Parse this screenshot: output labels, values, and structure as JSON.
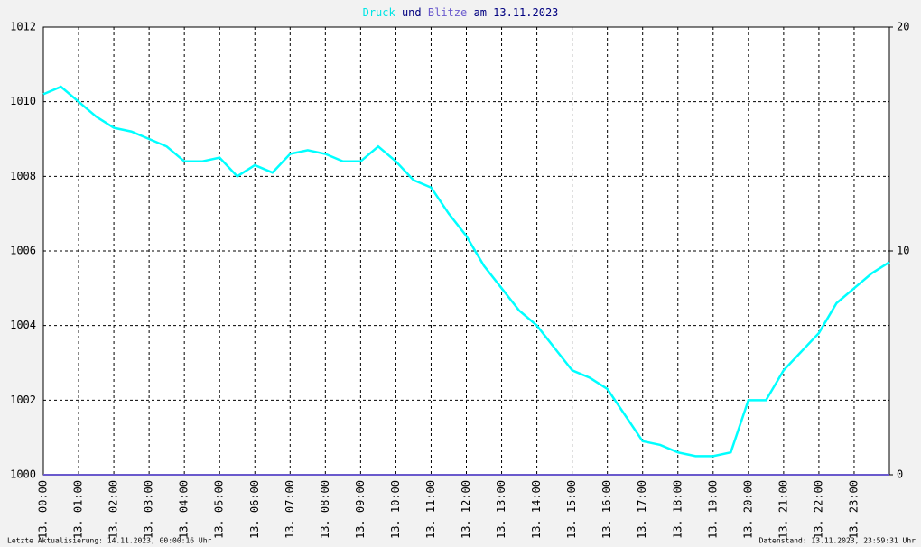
{
  "chart_data": {
    "type": "line",
    "title_connector": "und",
    "title_suffix": "am 13.11.2023",
    "footer_left": "Letzte Aktualisierung: 14.11.2023, 00:00:16 Uhr",
    "footer_right": "Datenstand: 13.11.2023, 23:59:31 Uhr",
    "grid": true,
    "xlim": [
      0,
      24
    ],
    "xticks": [
      {
        "value": 0,
        "label": "13. 00:00"
      },
      {
        "value": 1,
        "label": "13. 01:00"
      },
      {
        "value": 2,
        "label": "13. 02:00"
      },
      {
        "value": 3,
        "label": "13. 03:00"
      },
      {
        "value": 4,
        "label": "13. 04:00"
      },
      {
        "value": 5,
        "label": "13. 05:00"
      },
      {
        "value": 6,
        "label": "13. 06:00"
      },
      {
        "value": 7,
        "label": "13. 07:00"
      },
      {
        "value": 8,
        "label": "13. 08:00"
      },
      {
        "value": 9,
        "label": "13. 09:00"
      },
      {
        "value": 10,
        "label": "13. 10:00"
      },
      {
        "value": 11,
        "label": "13. 11:00"
      },
      {
        "value": 12,
        "label": "13. 12:00"
      },
      {
        "value": 13,
        "label": "13. 13:00"
      },
      {
        "value": 14,
        "label": "13. 14:00"
      },
      {
        "value": 15,
        "label": "13. 15:00"
      },
      {
        "value": 16,
        "label": "13. 16:00"
      },
      {
        "value": 17,
        "label": "13. 17:00"
      },
      {
        "value": 18,
        "label": "13. 18:00"
      },
      {
        "value": 19,
        "label": "13. 19:00"
      },
      {
        "value": 20,
        "label": "13. 20:00"
      },
      {
        "value": 21,
        "label": "13. 21:00"
      },
      {
        "value": 22,
        "label": "13. 22:00"
      },
      {
        "value": 23,
        "label": "13. 23:00"
      }
    ],
    "ylim": [
      1000,
      1012
    ],
    "yticks": [
      1000,
      1002,
      1004,
      1006,
      1008,
      1010,
      1012
    ],
    "y2lim": [
      0,
      20
    ],
    "y2ticks": [
      0,
      10,
      20
    ],
    "series": [
      {
        "name": "Druck",
        "color": "#00ffff",
        "x": [
          0,
          0.5,
          1,
          1.5,
          2,
          2.5,
          3,
          3.5,
          4,
          4.5,
          5,
          5.5,
          6,
          6.5,
          7,
          7.5,
          8,
          8.5,
          9,
          9.5,
          10,
          10.5,
          11,
          11.5,
          12,
          12.5,
          13,
          13.5,
          14,
          14.5,
          15,
          15.5,
          16,
          16.5,
          17,
          17.5,
          18,
          18.5,
          19,
          19.5,
          20,
          20.5,
          21,
          21.5,
          22,
          22.5,
          23,
          23.5,
          24
        ],
        "values": [
          1010.2,
          1010.4,
          1010.0,
          1009.6,
          1009.3,
          1009.2,
          1009.0,
          1008.8,
          1008.4,
          1008.4,
          1008.5,
          1008.0,
          1008.3,
          1008.1,
          1008.6,
          1008.7,
          1008.6,
          1008.4,
          1008.4,
          1008.8,
          1008.4,
          1007.9,
          1007.7,
          1007.0,
          1006.4,
          1005.6,
          1005.0,
          1004.4,
          1004.0,
          1003.4,
          1002.8,
          1002.6,
          1002.3,
          1001.6,
          1000.9,
          1000.8,
          1000.6,
          1000.5,
          1000.5,
          1000.6,
          1002.0,
          1002.0,
          1002.8,
          1003.3,
          1003.8,
          1004.6,
          1005.0,
          1005.4,
          1005.7
        ]
      },
      {
        "name": "Blitze",
        "color": "#6a5acd",
        "axis": "y2",
        "x": [
          0,
          24
        ],
        "values": [
          0,
          0
        ]
      }
    ]
  }
}
